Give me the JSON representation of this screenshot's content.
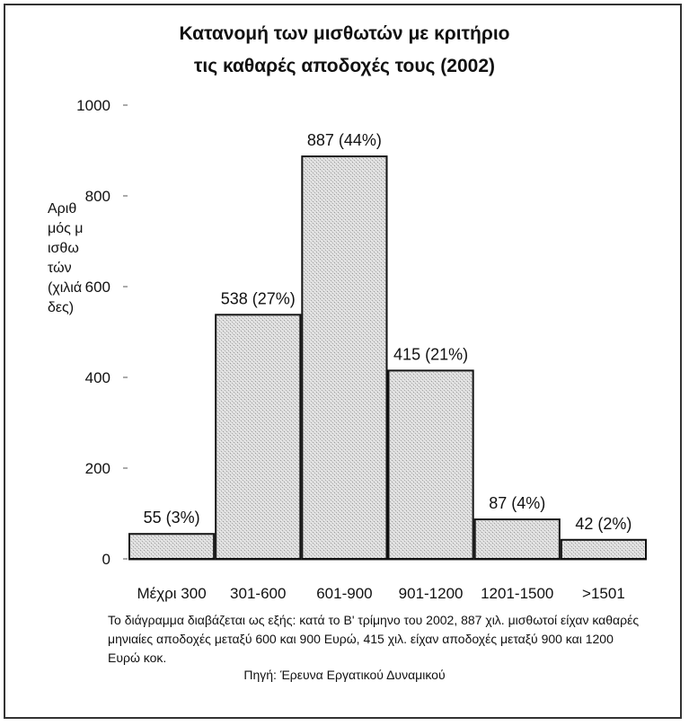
{
  "chart_data": {
    "type": "bar",
    "title_lines": [
      "Κατανομή των μισθωτών με κριτήριο",
      "τις καθαρές αποδοχές τους (2002)"
    ],
    "ylabel": "Αριθμός μισθωτών (χιλιάδες)",
    "xlabel": "",
    "ylim": [
      0,
      1000
    ],
    "yticks": [
      0,
      200,
      400,
      600,
      800,
      1000
    ],
    "categories": [
      "Μέχρι 300",
      "301-600",
      "601-900",
      "901-1200",
      "1201-1500",
      ">1501"
    ],
    "values": [
      55,
      538,
      887,
      415,
      87,
      42
    ],
    "data_labels": [
      "55 (3%)",
      "538 (27%)",
      "887 (44%)",
      "415 (21%)",
      "87 (4%)",
      "42 (2%)"
    ],
    "grid": false,
    "legend": "none",
    "bar_color": "#d9d9d9",
    "bar_edge_color": "#111111"
  },
  "note": "Το διάγραμμα διαβάζεται ως εξής: κατά το Β' τρίμηνο του 2002, 887 χιλ. μισθωτοί είχαν καθαρές μηνιαίες αποδοχές μεταξύ 600 και 900 Ευρώ, 415 χιλ. είχαν αποδοχές μεταξύ 900 και 1200 Ευρώ κοκ.",
  "source": "Πηγή: Έρευνα Εργατικού Δυναμικού"
}
